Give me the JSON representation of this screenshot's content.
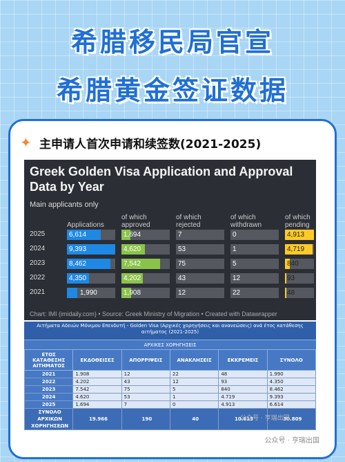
{
  "title_line1": "希腊移民局官宣",
  "title_line2": "希腊黄金签证数据",
  "card_heading": "主申请人首次申请和续签数(2021-2025)",
  "chart": {
    "title": "Greek Golden Visa Application and Approval Data by Year",
    "subtitle": "Main applicants only",
    "columns": [
      "Applications",
      "of which approved",
      "of which rejected",
      "of which withdrawn",
      "of which pending"
    ],
    "column_colors": [
      "#1e88e5",
      "#8bc34a",
      "#9e9e9e",
      "#9e9e9e",
      "#ffca28"
    ],
    "rows": [
      {
        "year": "2025",
        "values": [
          "6,614",
          "1,694",
          "7",
          "0",
          "4,913"
        ]
      },
      {
        "year": "2024",
        "values": [
          "9,393",
          "4,620",
          "53",
          "1",
          "4,719"
        ]
      },
      {
        "year": "2023",
        "values": [
          "8,462",
          "7,542",
          "75",
          "5",
          "840"
        ]
      },
      {
        "year": "2022",
        "values": [
          "4,350",
          "4,202",
          "43",
          "12",
          "93"
        ]
      },
      {
        "year": "2021",
        "values": [
          "1,990",
          "1,908",
          "12",
          "22",
          "48"
        ]
      }
    ],
    "footer": "Chart: IMI (imidaily.com) • Source: Greek Ministry of Migration • Created with Datawrapper"
  },
  "chart_data": {
    "type": "table",
    "title": "Greek Golden Visa Application and Approval Data by Year",
    "categories": [
      "2025",
      "2024",
      "2023",
      "2022",
      "2021"
    ],
    "series": [
      {
        "name": "Applications",
        "values": [
          6614,
          9393,
          8462,
          4350,
          1990
        ]
      },
      {
        "name": "of which approved",
        "values": [
          1694,
          4620,
          7542,
          4202,
          1908
        ]
      },
      {
        "name": "of which rejected",
        "values": [
          7,
          53,
          75,
          43,
          12
        ]
      },
      {
        "name": "of which withdrawn",
        "values": [
          0,
          1,
          5,
          12,
          22
        ]
      },
      {
        "name": "of which pending",
        "values": [
          4913,
          4719,
          840,
          93,
          48
        ]
      }
    ]
  },
  "table": {
    "caption": "Αιτήματα Αδειών Μόνιμου Επενδυτή - Golden Visa (Αρχικές χορηγήσεις και ανανεώσεις) ανά έτος κατάθεσης αιτήματος (2021-2025)",
    "band": "ΑΡΧΙΚΕΣ ΧΟΡΗΓΗΣΕΙΣ",
    "headers": [
      "ΕΤΟΣ ΚΑΤΑΘΕΣΗΣ ΑΙΤΗΜΑΤΟΣ",
      "ΕΚΔΟΘΕΙΣΕΣ",
      "ΑΠΟΡΡΙΨΕΙΣ",
      "ΑΝΑΚΛΗΣΕΙΣ",
      "ΕΚΚΡΕΜΕΙΣ",
      "ΣΥΝΟΛΟ"
    ],
    "rows": [
      [
        "2021",
        "1.908",
        "12",
        "22",
        "48",
        "1.990"
      ],
      [
        "2022",
        "4.202",
        "43",
        "12",
        "93",
        "4.350"
      ],
      [
        "2023",
        "7.542",
        "75",
        "5",
        "840",
        "8.462"
      ],
      [
        "2024",
        "4.620",
        "53",
        "1",
        "4.719",
        "9.393"
      ],
      [
        "2025",
        "1.694",
        "7",
        "0",
        "4.913",
        "6.614"
      ]
    ],
    "total": [
      "ΣΥΝΟΛΟ ΑΡΧΙΚΩΝ ΧΟΡΗΓΗΣΕΩΝ",
      "19.966",
      "190",
      "40",
      "10.613",
      "30.809"
    ]
  },
  "watermark": "公众号 · 亨瑞出国",
  "watermark_mid": "公众号 · 亨瑞出国"
}
